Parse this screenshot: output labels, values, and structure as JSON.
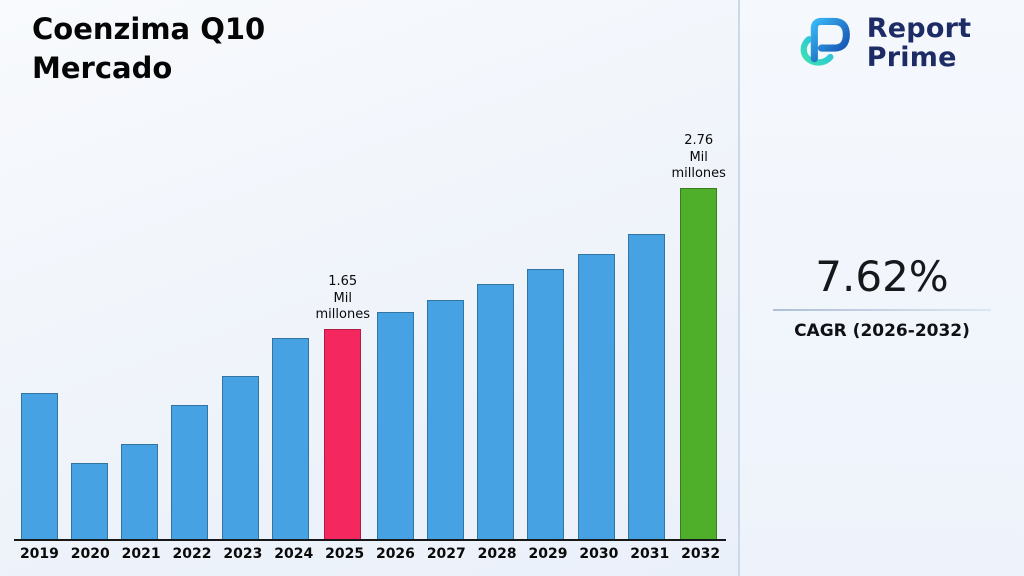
{
  "header": {
    "title_line1": "Coenzima Q10",
    "title_line2": "Mercado"
  },
  "logo": {
    "icon": "report-prime-logo-icon",
    "line1": "Report",
    "line2": "Prime",
    "text_color": "#1e2c66",
    "icon_blue": "#1d7fe0",
    "icon_green": "#2fd6a4"
  },
  "stats": {
    "cagr_value": "7.62%",
    "cagr_label": "CAGR (2026-2032)"
  },
  "chart_data": {
    "type": "bar",
    "title": "Coenzima Q10 Mercado",
    "unit": "Mil millones",
    "categories": [
      "2019",
      "2020",
      "2021",
      "2022",
      "2023",
      "2024",
      "2025",
      "2026",
      "2027",
      "2028",
      "2029",
      "2030",
      "2031",
      "2032"
    ],
    "values": [
      1.15,
      0.6,
      0.75,
      1.05,
      1.28,
      1.58,
      1.65,
      1.78,
      1.88,
      2.0,
      2.12,
      2.24,
      2.4,
      2.76
    ],
    "ylim": [
      0,
      3.3
    ],
    "grid": false,
    "legend": false,
    "bar_colors": {
      "default": "#46a2e2",
      "2025": "#f5275f",
      "2032": "#4fae2a"
    },
    "annotations": [
      {
        "category": "2025",
        "label": "1.65\nMil\nmillones"
      },
      {
        "category": "2032",
        "label": "2.76\nMil\nmillones"
      }
    ]
  }
}
